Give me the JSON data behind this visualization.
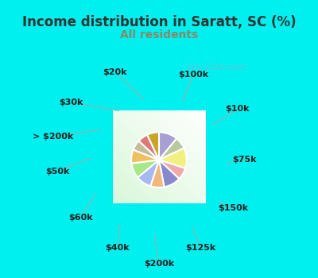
{
  "title": "Income distribution in Saratt, SC (%)",
  "subtitle": "All residents",
  "watermark": "City-Data.com",
  "labels": [
    "$100k",
    "$10k",
    "$75k",
    "$150k",
    "$125k",
    "$200k",
    "$40k",
    "$60k",
    "$50k",
    "> $200k",
    "$30k",
    "$20k"
  ],
  "values": [
    11,
    7,
    12,
    7,
    10,
    8,
    9,
    9,
    8,
    6,
    6,
    7
  ],
  "colors": [
    "#a89fd4",
    "#b8c9a0",
    "#f2f080",
    "#f0a8a8",
    "#8888cc",
    "#f0b87a",
    "#a8b8f0",
    "#a8e888",
    "#f0c060",
    "#c8ba9a",
    "#e07878",
    "#c8a428"
  ],
  "background_cyan": "#00efef",
  "title_color": "#333333",
  "subtitle_color": "#888866",
  "label_color": "#222222",
  "figsize": [
    4.0,
    3.5
  ],
  "dpi": 100,
  "title_fontsize": 12,
  "subtitle_fontsize": 10,
  "label_fontsize": 8
}
